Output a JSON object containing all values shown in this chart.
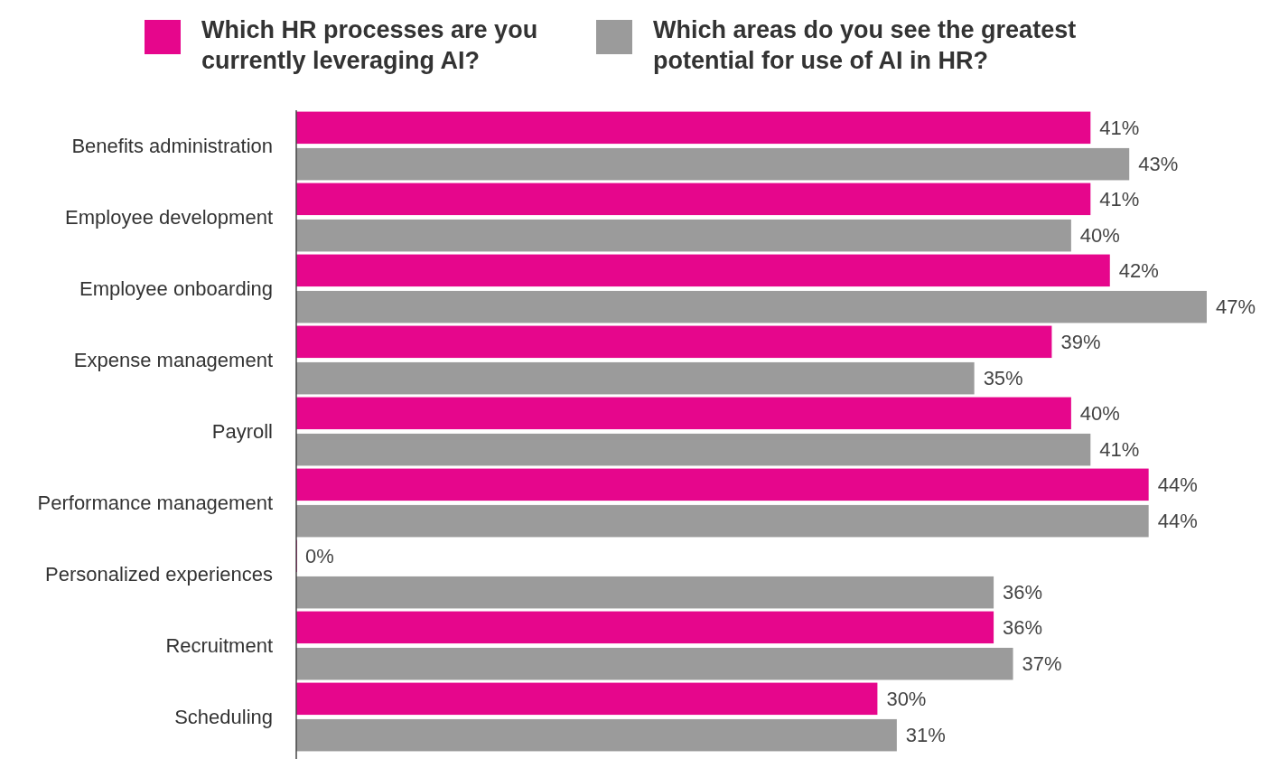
{
  "chart_data": {
    "type": "bar",
    "orientation": "horizontal",
    "legend": "top",
    "categories": [
      "Benefits administration",
      "Employee development",
      "Employee onboarding",
      "Expense management",
      "Payroll",
      "Performance management",
      "Personalized experiences",
      "Recruitment",
      "Scheduling"
    ],
    "series": [
      {
        "name": "Which HR processes are you currently leveraging AI?",
        "color": "#e6068c",
        "values": [
          41,
          41,
          42,
          39,
          40,
          44,
          0,
          36,
          30
        ],
        "value_labels": [
          "41%",
          "41%",
          "42%",
          "39%",
          "40%",
          "44%",
          "0%",
          "36%",
          "30%"
        ]
      },
      {
        "name": "Which areas do you see the greatest potential for use of AI in HR?",
        "color": "#9b9b9b",
        "values": [
          43,
          40,
          47,
          35,
          41,
          44,
          36,
          37,
          31
        ],
        "value_labels": [
          "43%",
          "40%",
          "47%",
          "35%",
          "41%",
          "44%",
          "36%",
          "37%",
          "31%"
        ]
      }
    ]
  }
}
